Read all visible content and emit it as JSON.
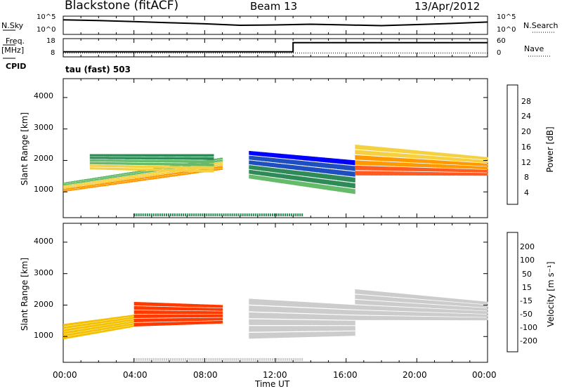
{
  "header": {
    "station": "Blackstone (fitACF)",
    "beam": "Beam 13",
    "date": "13/Apr/2012"
  },
  "left_labels": {
    "nsky": "N.Sky",
    "freq": "Freq.",
    "mhz": "[MHz]",
    "cpid": "CPID"
  },
  "right_labels": {
    "nsearch": "N.Search",
    "nave": "Nave"
  },
  "cpid_text": "tau (fast) 503",
  "colors": {
    "power": [
      "#0000ff",
      "#1f4fbf",
      "#2e8b57",
      "#66bb6a",
      "#f5d142",
      "#ff9900",
      "#ff5a1f",
      "#ff0000"
    ],
    "velocity": [
      "#2030a0",
      "#2e7d32",
      "#6cc04a",
      "#b8e07a",
      "#cccccc",
      "#f5c000",
      "#ff8c00",
      "#ff3a00",
      "#ff0000"
    ]
  },
  "chart_data": [
    {
      "type": "line",
      "name_label": "N.Sky",
      "ytick_labels_left": [
        "10^5",
        "10^0"
      ],
      "ytick_labels_right": [
        "10^5",
        "10^0"
      ],
      "xlim": [
        0,
        24
      ],
      "series": [
        {
          "name": "N.Sky",
          "x": [
            0,
            2,
            4,
            6,
            8,
            10,
            12,
            14,
            16,
            18,
            20,
            22,
            24
          ],
          "y": [
            4.0,
            3.8,
            3.5,
            3.2,
            2.9,
            2.5,
            2.6,
            2.8,
            2.6,
            2.4,
            2.7,
            3.0,
            3.4
          ]
        }
      ]
    },
    {
      "type": "line",
      "ytick_labels_left": [
        "18",
        "8"
      ],
      "ytick_labels_right": [
        "60",
        "0"
      ],
      "xlim": [
        0,
        24
      ],
      "series": [
        {
          "name": "Freq.",
          "x": [
            0,
            13.0,
            13.0,
            24
          ],
          "y": [
            10,
            10,
            15,
            15
          ]
        },
        {
          "name": "Nave",
          "x": [
            0,
            24
          ],
          "y": [
            8,
            8
          ]
        }
      ]
    },
    {
      "type": "heatmap",
      "ylabel": "Slant Range [km]",
      "ytick_labels": [
        "1000",
        "2000",
        "3000",
        "4000"
      ],
      "ylim": [
        180,
        4600
      ],
      "xlim": [
        0,
        24
      ],
      "colorbar_label": "Power [dB]",
      "colorbar_ticks": [
        "4",
        "8",
        "12",
        "16",
        "20",
        "24",
        "28"
      ],
      "colorbar_range": [
        0,
        32
      ],
      "features": [
        {
          "x": [
            0.0,
            9.0
          ],
          "range_start": [
            1000,
            1700
          ],
          "range_end": [
            1300,
            2100
          ],
          "power_db": 18
        },
        {
          "x": [
            1.5,
            8.5
          ],
          "range_start": [
            1700,
            1600
          ],
          "range_end": [
            2200,
            2200
          ],
          "power_db": 14
        },
        {
          "x": [
            10.5,
            16.5
          ],
          "range_start": [
            1400,
            900
          ],
          "range_end": [
            2300,
            2000
          ],
          "power_db": 8
        },
        {
          "x": [
            16.5,
            24.0
          ],
          "range_start": [
            1500,
            1500
          ],
          "range_end": [
            2500,
            2100
          ],
          "power_db": 22
        }
      ]
    },
    {
      "type": "heatmap",
      "ylabel": "Slant Range [km]",
      "ytick_labels": [
        "1000",
        "2000",
        "3000",
        "4000"
      ],
      "ylim": [
        180,
        4600
      ],
      "xlim": [
        0,
        24
      ],
      "xtick_labels": [
        "00:00",
        "04:00",
        "08:00",
        "12:00",
        "16:00",
        "20:00",
        "00:00"
      ],
      "xlabel": "Time UT",
      "colorbar_label": "Velocity [m s⁻¹]",
      "colorbar_ticks": [
        "200",
        "100",
        "50",
        "15",
        "-15",
        "-50",
        "-100",
        "-200"
      ],
      "colorbar_range": [
        -250,
        250
      ],
      "features": [
        {
          "x": [
            0.0,
            4.0
          ],
          "range_start": [
            900,
            1300
          ],
          "range_end": [
            1400,
            1700
          ],
          "velocity": -40
        },
        {
          "x": [
            4.0,
            9.0
          ],
          "range_start": [
            1300,
            1400
          ],
          "range_end": [
            2100,
            2000
          ],
          "velocity": -200
        },
        {
          "x": [
            10.5,
            16.5
          ],
          "range_start": [
            900,
            1000
          ],
          "range_end": [
            2200,
            2000
          ],
          "velocity": 0
        },
        {
          "x": [
            16.5,
            24.0
          ],
          "range_start": [
            1500,
            1500
          ],
          "range_end": [
            2500,
            2100
          ],
          "velocity": 0
        }
      ]
    }
  ]
}
